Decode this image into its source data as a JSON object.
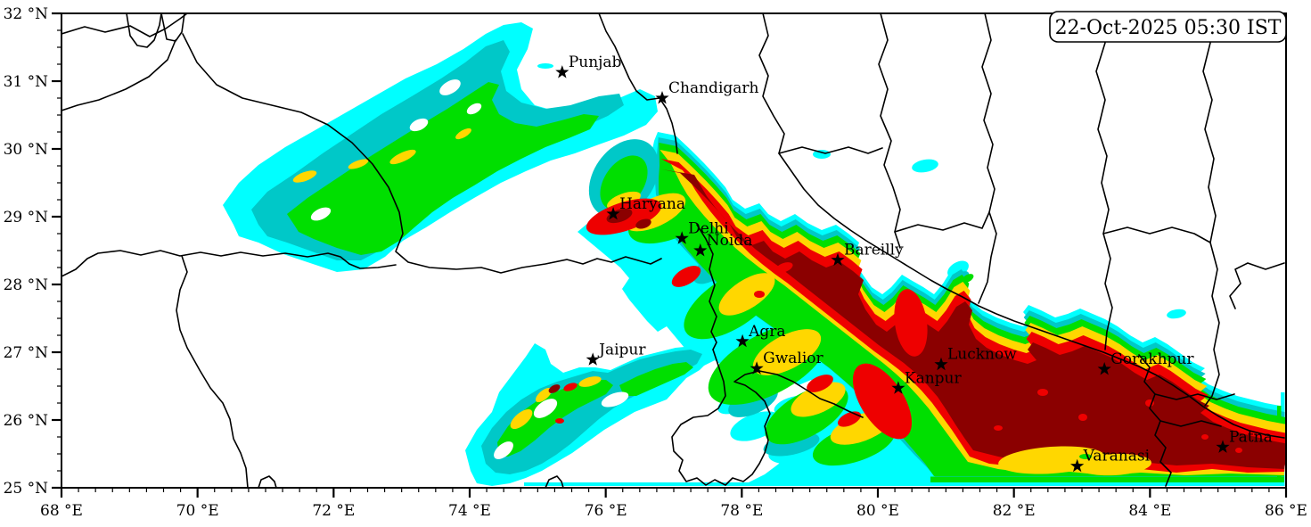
{
  "timestamp": {
    "text": "22-Oct-2025 05:30 IST"
  },
  "axes": {
    "x": {
      "unit": "°E",
      "min": 68,
      "max": 86,
      "major_step": 2,
      "minor_step": 0.25,
      "tick_labels": [
        "68 °E",
        "70 °E",
        "72 °E",
        "74 °E",
        "76 °E",
        "78 °E",
        "80 °E",
        "82 °E",
        "84 °E",
        "86 °E"
      ],
      "tick_values": [
        68,
        70,
        72,
        74,
        76,
        78,
        80,
        82,
        84,
        86
      ]
    },
    "y": {
      "unit": "°N",
      "min": 25,
      "max": 32,
      "major_step": 1,
      "minor_step": 0.25,
      "tick_labels": [
        "25 °N",
        "26 °N",
        "27 °N",
        "28 °N",
        "29 °N",
        "30 °N",
        "31 °N",
        "32 °N"
      ],
      "tick_values": [
        25,
        26,
        27,
        28,
        29,
        30,
        31,
        32
      ]
    }
  },
  "cities": [
    {
      "name": "Punjab",
      "lon": 75.36,
      "lat": 31.13
    },
    {
      "name": "Chandigarh",
      "lon": 76.83,
      "lat": 30.75
    },
    {
      "name": "Haryana",
      "lon": 76.11,
      "lat": 29.04
    },
    {
      "name": "Delhi",
      "lon": 77.12,
      "lat": 28.68
    },
    {
      "name": "Noida",
      "lon": 77.39,
      "lat": 28.5
    },
    {
      "name": "Bareilly",
      "lon": 79.41,
      "lat": 28.36
    },
    {
      "name": "Agra",
      "lon": 78.01,
      "lat": 27.16
    },
    {
      "name": "Jaipur",
      "lon": 75.81,
      "lat": 26.89
    },
    {
      "name": "Gwalior",
      "lon": 78.22,
      "lat": 26.76
    },
    {
      "name": "Lucknow",
      "lon": 80.93,
      "lat": 26.82
    },
    {
      "name": "Kanpur",
      "lon": 80.3,
      "lat": 26.47
    },
    {
      "name": "Gorakhpur",
      "lon": 83.33,
      "lat": 26.75
    },
    {
      "name": "Varanasi",
      "lon": 82.93,
      "lat": 25.32
    },
    {
      "name": "Patna",
      "lon": 85.07,
      "lat": 25.6
    }
  ],
  "colors": {
    "c1": "#00FFFF",
    "c2": "#00C8C8",
    "c3": "#00DF00",
    "c4": "#FFD700",
    "c5": "#EE0000",
    "c6": "#8B0000",
    "land": "#FFFFFF",
    "line": "#000000"
  },
  "chart_data": {
    "type": "heatmap",
    "x_range": [
      68,
      86
    ],
    "y_range": [
      25,
      32
    ],
    "x_unit": "°E",
    "y_unit": "°N",
    "intensity_levels_low_to_high": [
      "#00FFFF",
      "#00C8C8",
      "#00DF00",
      "#FFD700",
      "#EE0000",
      "#8B0000"
    ],
    "regions": [
      {
        "area": "Indo-Gangetic plain from ~77.5E,30.2N southeast to 86E,25N (Delhi–Bareilly–Lucknow–Kanpur–Gorakhpur–Varanasi–Patna)",
        "intensity": "maximum (dark red core ringed by red, yellow, green, teal, cyan fringes)"
      },
      {
        "area": "Punjab belt ~71E–77E, 29N–31.5N",
        "intensity": "low-moderate (cyan/teal band with green spine and yellow flecks)"
      },
      {
        "area": "Rajasthan Aravalli diagonal ~74E–78E, 25.5N–27.3N",
        "intensity": "low-moderate (cyan/teal/green band with small yellow and red spots)"
      },
      {
        "area": "Nepal / Himalayan foothills and far west (Pakistan side)",
        "intensity": "clear (white) with scattered small cyan patches"
      }
    ]
  }
}
